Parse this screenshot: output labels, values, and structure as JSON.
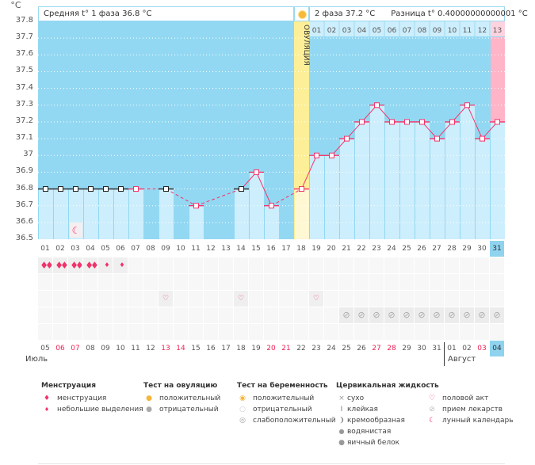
{
  "header": {
    "unit": "°C",
    "phase1": "Средняя t° 1 фаза 36.8 °C",
    "phase2": "2 фаза 37.2 °C",
    "difference": "Разница t° 0.40000000000001 °C",
    "ovulation_label": "ОВУЛЯЦИЯ",
    "phase2_days": [
      "01",
      "02",
      "03",
      "04",
      "05",
      "06",
      "07",
      "08",
      "09",
      "10",
      "11",
      "12",
      "13"
    ]
  },
  "chart_data": {
    "type": "line",
    "ylim": [
      36.5,
      37.8
    ],
    "yticks": [
      "37.8",
      "37.7",
      "37.6",
      "37.5",
      "37.4",
      "37.3",
      "37.2",
      "37.1",
      "37",
      "36.9",
      "36.8",
      "36.7",
      "36.6",
      "36.5"
    ],
    "grid": true,
    "x": [
      "01",
      "02",
      "03",
      "04",
      "05",
      "06",
      "07",
      "08",
      "09",
      "10",
      "11",
      "12",
      "13",
      "14",
      "15",
      "16",
      "17",
      "18",
      "19",
      "20",
      "21",
      "22",
      "23",
      "24",
      "25",
      "26",
      "27",
      "28",
      "29",
      "30",
      "31"
    ],
    "values": [
      36.8,
      36.8,
      36.8,
      36.8,
      36.8,
      36.8,
      36.8,
      null,
      36.8,
      null,
      36.7,
      null,
      null,
      36.8,
      36.9,
      36.7,
      null,
      36.8,
      37.0,
      37.0,
      37.1,
      37.2,
      37.3,
      37.2,
      37.2,
      37.2,
      37.1,
      37.2,
      37.3,
      37.1,
      37.2
    ],
    "black_markers": [
      "01",
      "02",
      "03",
      "04",
      "05",
      "06",
      "09",
      "14"
    ],
    "ovulation_day": "18",
    "current_day": "31",
    "moon_day": "03"
  },
  "rows": {
    "menstruation": {
      "01": "heavy",
      "02": "heavy",
      "03": "heavy",
      "04": "heavy",
      "05": "light",
      "06": "light"
    },
    "intercourse": [
      "09",
      "14",
      "19"
    ],
    "medication": [
      "21",
      "22",
      "23",
      "24",
      "25",
      "26",
      "27",
      "28",
      "29",
      "30",
      "31"
    ]
  },
  "calendar": {
    "dates": [
      "05",
      "06",
      "07",
      "08",
      "09",
      "10",
      "11",
      "12",
      "13",
      "14",
      "15",
      "16",
      "17",
      "18",
      "19",
      "20",
      "21",
      "22",
      "23",
      "24",
      "25",
      "26",
      "27",
      "28",
      "29",
      "30",
      "31",
      "01",
      "02",
      "03",
      "04"
    ],
    "red": [
      "06",
      "07",
      "13",
      "14",
      "20",
      "21",
      "27",
      "28",
      "03"
    ],
    "month1": "Июль",
    "month2": "Август"
  },
  "legend": {
    "menstruation": {
      "title": "Менструация",
      "items": [
        "менструация",
        "небольшие выделения"
      ]
    },
    "ovulation_test": {
      "title": "Тест на овуляцию",
      "items": [
        "положительный",
        "отрицательный"
      ]
    },
    "pregnancy_test": {
      "title": "Тест на беременность",
      "items": [
        "положительный",
        "отрицательный",
        "слабоположительный"
      ]
    },
    "cervical": {
      "title": "Цервикальная жидкость",
      "items": [
        "сухо",
        "клейкая",
        "кремообразная",
        "водянистая",
        "яичный белок"
      ]
    },
    "other": {
      "items": [
        "половой акт",
        "прием лекарств",
        "лунный календарь"
      ]
    }
  },
  "colors": {
    "phase_bg": "#93d8f2",
    "bar": "#cdeefc",
    "line": "#f5336a",
    "ovulation": "#fcef98",
    "luteal_over": "#ffb4c7"
  }
}
